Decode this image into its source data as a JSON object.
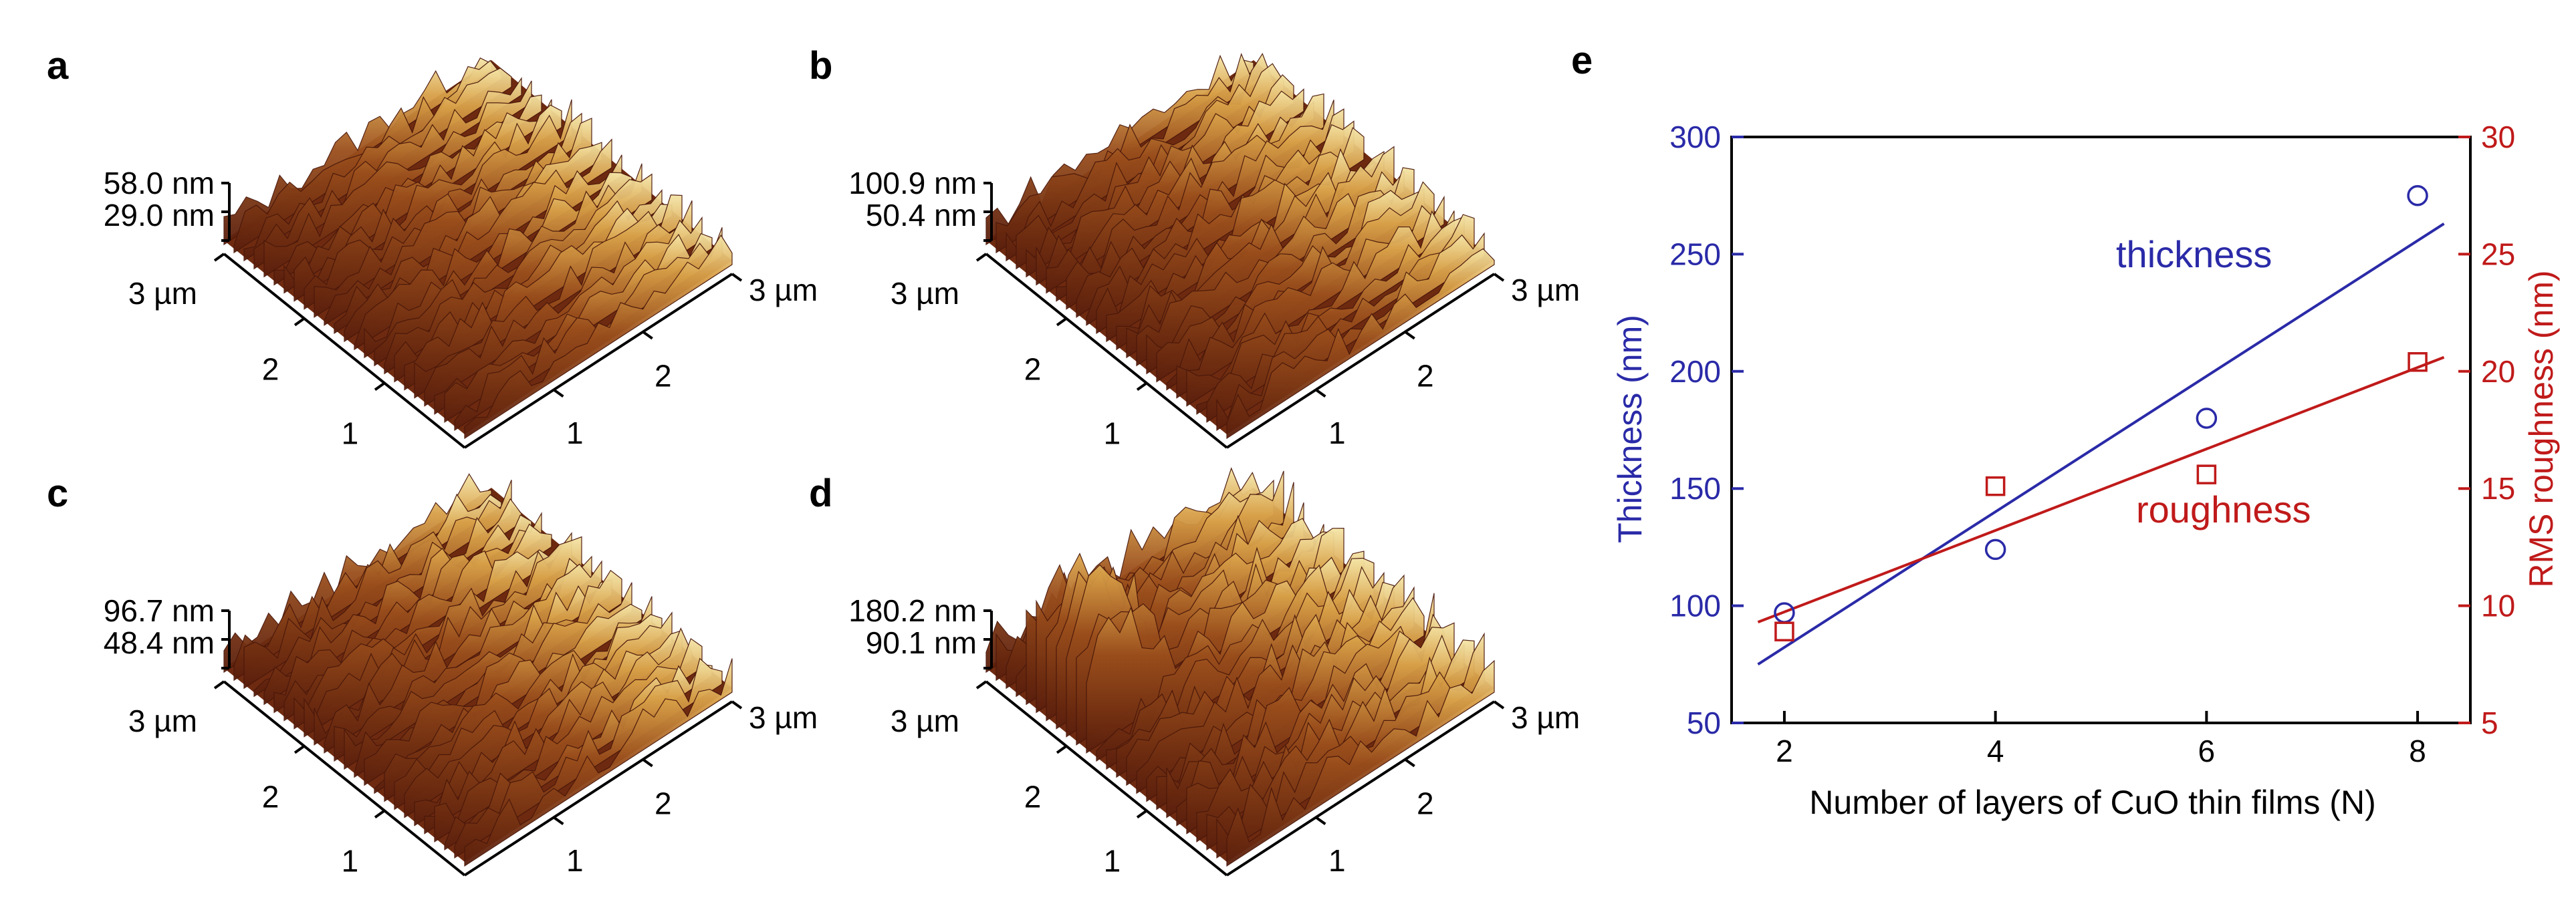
{
  "panels": [
    {
      "label": "a",
      "height_labels": [
        "58.0 nm",
        "29.0 nm"
      ],
      "xy_labels": [
        "3 µm",
        "3 µm",
        "2",
        "2",
        "1",
        "1"
      ],
      "max_height_nm": 58.0
    },
    {
      "label": "b",
      "height_labels": [
        "100.9 nm",
        "50.4 nm"
      ],
      "xy_labels": [
        "3 µm",
        "3 µm",
        "2",
        "2",
        "1",
        "1"
      ],
      "max_height_nm": 100.9
    },
    {
      "label": "c",
      "height_labels": [
        "96.7 nm",
        "48.4 nm"
      ],
      "xy_labels": [
        "3 µm",
        "3 µm",
        "2",
        "2",
        "1",
        "1"
      ],
      "max_height_nm": 96.7
    },
    {
      "label": "d",
      "height_labels": [
        "180.2 nm",
        "90.1 nm"
      ],
      "xy_labels": [
        "3 µm",
        "3 µm",
        "2",
        "2",
        "1",
        "1"
      ],
      "max_height_nm": 180.2
    }
  ],
  "chart_data": {
    "label": "e",
    "type": "scatter",
    "xlabel": "Number of layers of CuO thin films (N)",
    "ylabel_left": "Thickness (nm)",
    "ylabel_right": "RMS roughness (nm)",
    "xlim": [
      1.5,
      8.5
    ],
    "ylim_left": [
      50,
      300
    ],
    "ylim_right": [
      5,
      30
    ],
    "x_ticks": [
      "2",
      "4",
      "6",
      "8"
    ],
    "y_ticks_left": [
      "50",
      "100",
      "150",
      "200",
      "250",
      "300"
    ],
    "y_ticks_right": [
      "5",
      "10",
      "15",
      "20",
      "25",
      "30"
    ],
    "series": [
      {
        "name": "thickness",
        "axis": "left",
        "marker": "circle",
        "color": "#2a2aa8",
        "x": [
          2,
          4,
          6,
          8
        ],
        "y": [
          97,
          124,
          180,
          275
        ],
        "fit": {
          "x": [
            1.75,
            8.25
          ],
          "y": [
            75,
            263
          ]
        }
      },
      {
        "name": "roughness",
        "axis": "right",
        "marker": "square",
        "color": "#c01a1a",
        "x": [
          2,
          4,
          6,
          8
        ],
        "y": [
          8.9,
          15.1,
          15.6,
          20.4
        ],
        "fit": {
          "x": [
            1.75,
            8.25
          ],
          "y": [
            9.3,
            20.6
          ]
        }
      }
    ]
  },
  "colors": {
    "left_axis": "#2a2aa8",
    "right_axis": "#c01a1a",
    "afm_dark": "#5a1e0c",
    "afm_light": "#f5e6a8"
  }
}
